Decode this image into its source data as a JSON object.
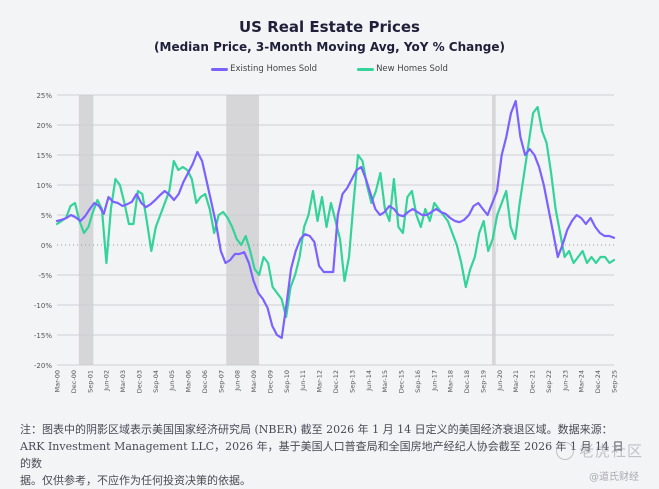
{
  "chart_data": {
    "type": "line",
    "title": "US Real Estate Prices",
    "subtitle": "(Median Price, 3-Month Moving Avg, YoY % Change)",
    "xlabel": "",
    "ylabel": "",
    "ylim": [
      -20,
      25
    ],
    "yticks": [
      25,
      20,
      15,
      10,
      5,
      0,
      -5,
      -10,
      -15,
      -20
    ],
    "ytick_labels": [
      "25%",
      "20%",
      "15%",
      "10%",
      "5%",
      "0%",
      "-5%",
      "-10%",
      "-15%",
      "-20%"
    ],
    "grid": true,
    "legend_position": "top-center",
    "x_start": "Mar-00",
    "x_step_months": 3,
    "xtick_labels": [
      "Mar-00",
      "Dec-00",
      "Sep-01",
      "Jun-02",
      "Mar-03",
      "Dec-03",
      "Sep-04",
      "Jun-05",
      "Mar-06",
      "Dec-06",
      "Sep-07",
      "Jun-08",
      "Mar-09",
      "Dec-09",
      "Sep-10",
      "Jun-11",
      "Mar-12",
      "Dec-12",
      "Sep-13",
      "Jun-14",
      "Mar-15",
      "Dec-15",
      "Sep-16",
      "Jun-17",
      "Mar-18",
      "Dec-18",
      "Sep-19",
      "Jun-20",
      "Mar-21",
      "Dec-21",
      "Sep-22",
      "Jun-23",
      "Mar-24",
      "Dec-24",
      "Sep-25"
    ],
    "recessions": [
      [
        "Mar-01",
        "Nov-01"
      ],
      [
        "Dec-07",
        "Jun-09"
      ],
      [
        "Feb-20",
        "Apr-20"
      ]
    ],
    "series": [
      {
        "name": "Existing Homes Sold",
        "color": "#7b61ff",
        "values": [
          4,
          4.2,
          4.5,
          5,
          4.6,
          4,
          4.8,
          6,
          7,
          6.5,
          5.2,
          8,
          7.2,
          7,
          6.5,
          6.8,
          7.2,
          8.5,
          7,
          6.3,
          6.8,
          7.5,
          8.3,
          9,
          8.4,
          7.5,
          8.5,
          10.5,
          12,
          13.5,
          15.5,
          14,
          10.5,
          7,
          3.5,
          -1,
          -3,
          -2.5,
          -1.5,
          -1.5,
          -1.2,
          -3,
          -6,
          -8,
          -9,
          -10.5,
          -13.5,
          -15,
          -15.5,
          -10,
          -4,
          -1,
          1,
          1.8,
          1.5,
          0.5,
          -3.5,
          -4.5,
          -4.5,
          -4.5,
          5,
          8.5,
          9.5,
          11,
          12.5,
          13,
          11,
          8.5,
          6,
          5,
          5.5,
          6.5,
          6,
          5,
          4.8,
          5.5,
          6,
          5.5,
          5,
          5,
          5.5,
          6,
          5.5,
          5.2,
          4.5,
          4,
          3.8,
          4.2,
          5,
          6.5,
          7,
          6,
          5,
          7,
          9,
          15,
          18,
          22,
          24,
          18,
          15,
          16,
          15,
          13,
          10,
          6,
          2,
          -2,
          0,
          2.5,
          4,
          5,
          4.5,
          3.5,
          4.5,
          3,
          2,
          1.5,
          1.5,
          1.2
        ],
        "values_note": "approximate readings per plotted step"
      },
      {
        "name": "New Homes Sold",
        "color": "#34d399",
        "values": [
          3.5,
          4,
          4.5,
          6.5,
          7,
          4,
          2,
          3,
          5.5,
          7.5,
          6,
          -3,
          6,
          11,
          10,
          7,
          3.5,
          3.5,
          9,
          8.5,
          4,
          -1,
          3,
          5,
          7,
          9,
          14,
          12.5,
          13,
          12.5,
          11,
          7,
          8,
          8.5,
          6,
          2,
          5,
          5.5,
          4.5,
          3,
          1,
          0,
          1.5,
          -1,
          -4,
          -5,
          -2,
          -3,
          -7,
          -8,
          -9,
          -12,
          -7,
          -5,
          -2,
          3,
          5,
          9,
          4,
          8,
          3,
          7,
          4,
          1,
          -6,
          -2,
          7,
          15,
          14,
          10,
          7,
          9,
          12,
          6,
          4,
          11,
          3,
          2,
          8,
          9,
          5,
          3,
          6,
          4,
          7,
          6,
          5,
          4,
          2,
          0,
          -3,
          -7,
          -4,
          -2,
          2,
          4,
          -1,
          1,
          5,
          7,
          9,
          3,
          1,
          7,
          12,
          17,
          22,
          23,
          19,
          17,
          12,
          6,
          2,
          -2,
          -1,
          -3,
          -2,
          -1,
          -3,
          -2,
          -3,
          -2,
          -2,
          -3,
          -2.5
        ],
        "values_note": "approximate readings per plotted step"
      }
    ]
  },
  "legend": {
    "existing_label": "Existing Homes Sold",
    "new_label": "New Homes Sold"
  },
  "footnote": {
    "line1": "注：图表中的阴影区域表示美国国家经济研究局 (NBER) 截至 2026 年 1 月 14 日定义的美国经济衰退区域。数据来源：",
    "line2": "ARK Investment Management LLC，2026 年，基于美国人口普查局和全国房地产经纪人协会截至 2026 年 1 月 14 日的数",
    "line3": "据。仅供参考，不应作为任何投资决策的依据。"
  },
  "watermark": {
    "brand": "老虎社区",
    "handle": "@道氏财经"
  }
}
